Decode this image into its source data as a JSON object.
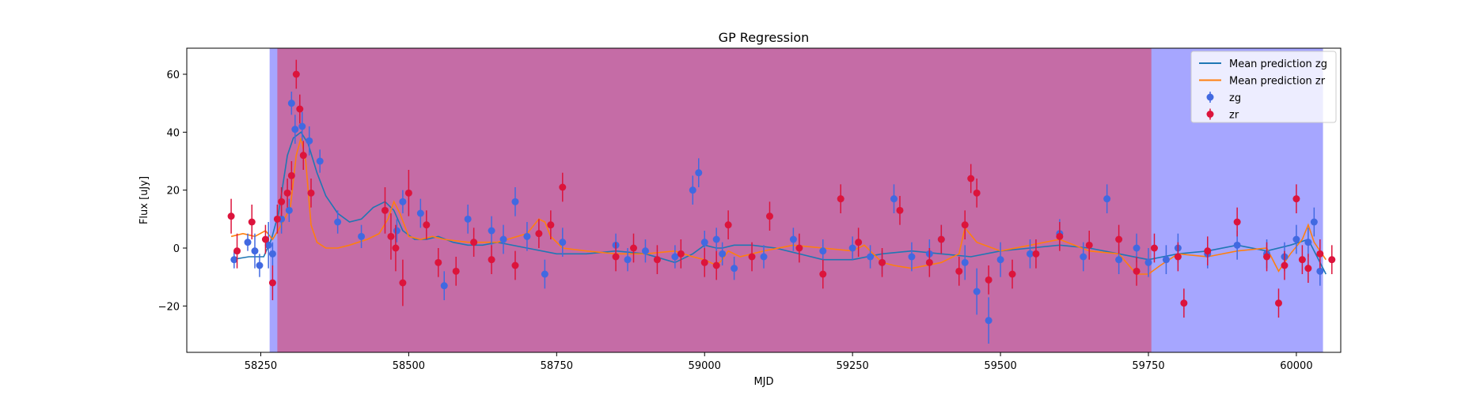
{
  "chart_data": {
    "type": "scatter",
    "title": "GP Regression",
    "xlabel": "MJD",
    "ylabel": "Flux [uJy]",
    "xlim": [
      58125,
      60075
    ],
    "ylim": [
      -36,
      69
    ],
    "x_ticks": [
      58250,
      58500,
      58750,
      59000,
      59250,
      59500,
      59750,
      60000
    ],
    "y_ticks": [
      -20,
      0,
      20,
      40,
      60
    ],
    "legend_position": "upper right",
    "colors": {
      "zg_points": "#4169e1",
      "zr_points": "#dc143c",
      "zg_mean": "#1f77b4",
      "zr_mean": "#ff7f0e"
    },
    "spans": [
      {
        "x0": 58265,
        "x1": 60045,
        "color": "#0000ff",
        "alpha": 0.35
      },
      {
        "x0": 58278,
        "x1": 59755,
        "color": "#ff0000",
        "alpha": 0.35
      }
    ],
    "legend": [
      {
        "label": "Mean prediction zg",
        "kind": "line",
        "color": "#1f77b4"
      },
      {
        "label": "Mean prediction zr",
        "kind": "line",
        "color": "#ff7f0e"
      },
      {
        "label": "zg",
        "kind": "errorbar",
        "color": "#4169e1"
      },
      {
        "label": "zr",
        "kind": "errorbar",
        "color": "#dc143c"
      }
    ],
    "series": [
      {
        "name": "Mean prediction zg",
        "kind": "line",
        "color": "#1f77b4",
        "x": [
          58200,
          58230,
          58255,
          58268,
          58280,
          58295,
          58305,
          58318,
          58330,
          58345,
          58360,
          58380,
          58400,
          58420,
          58440,
          58460,
          58475,
          58490,
          58510,
          58530,
          58550,
          58575,
          58600,
          58625,
          58650,
          58700,
          58750,
          58800,
          58850,
          58900,
          58950,
          58980,
          59000,
          59020,
          59030,
          59050,
          59080,
          59120,
          59160,
          59200,
          59250,
          59300,
          59350,
          59400,
          59450,
          59500,
          59550,
          59600,
          59650,
          59700,
          59750,
          59800,
          59850,
          59900,
          59950,
          59990,
          60020,
          60040,
          60050
        ],
        "y": [
          -4,
          -3,
          -3,
          3,
          12,
          32,
          38,
          40,
          36,
          26,
          18,
          12,
          9,
          10,
          14,
          16,
          13,
          6,
          3,
          3,
          4,
          2,
          1,
          1,
          2,
          0,
          -2,
          -2,
          -1,
          -2,
          -5,
          -2,
          1,
          0,
          0,
          1,
          1,
          0,
          -2,
          -4,
          -4,
          -2,
          -1,
          -2,
          -3,
          -1,
          0,
          1,
          0,
          -2,
          -4,
          -2,
          -1,
          1,
          -1,
          1,
          3,
          -5,
          -9
        ]
      },
      {
        "name": "Mean prediction zr",
        "kind": "line",
        "color": "#ff7f0e",
        "x": [
          58200,
          58220,
          58240,
          58258,
          58270,
          58285,
          58300,
          58310,
          58318,
          58326,
          58335,
          58345,
          58360,
          58380,
          58400,
          58430,
          58450,
          58465,
          58475,
          58485,
          58500,
          58520,
          58540,
          58560,
          58600,
          58650,
          58700,
          58720,
          58730,
          58740,
          58760,
          58800,
          58850,
          58900,
          58950,
          58980,
          59000,
          59020,
          59030,
          59040,
          59060,
          59100,
          59150,
          59200,
          59250,
          59270,
          59290,
          59300,
          59320,
          59350,
          59400,
          59430,
          59440,
          59460,
          59500,
          59600,
          59650,
          59700,
          59730,
          59750,
          59770,
          59800,
          59850,
          59900,
          59950,
          59970,
          59990,
          60010,
          60020,
          60030,
          60050
        ],
        "y": [
          4,
          5,
          4,
          6,
          3,
          8,
          14,
          32,
          38,
          30,
          8,
          2,
          0,
          0,
          1,
          3,
          5,
          10,
          16,
          12,
          4,
          3,
          4,
          3,
          2,
          2,
          5,
          10,
          9,
          4,
          0,
          -1,
          -2,
          -2,
          -1,
          -3,
          -4,
          -6,
          -4,
          -1,
          -3,
          -1,
          1,
          0,
          -1,
          1,
          -3,
          -5,
          -6,
          -7,
          -5,
          -2,
          7,
          2,
          -1,
          3,
          -1,
          -2,
          -9,
          -9,
          -6,
          -2,
          -3,
          -1,
          0,
          -8,
          -2,
          3,
          8,
          2,
          -4
        ]
      },
      {
        "name": "zg",
        "kind": "errorbar",
        "color": "#4169e1",
        "x": [
          58205,
          58228,
          58240,
          58248,
          58263,
          58270,
          58285,
          58298,
          58302,
          58308,
          58320,
          58332,
          58350,
          58380,
          58420,
          58480,
          58490,
          58520,
          58560,
          58600,
          58640,
          58660,
          58680,
          58700,
          58730,
          58760,
          58850,
          58870,
          58900,
          58950,
          58980,
          58990,
          59000,
          59020,
          59030,
          59050,
          59100,
          59150,
          59200,
          59250,
          59280,
          59300,
          59320,
          59350,
          59380,
          59400,
          59440,
          59460,
          59480,
          59500,
          59550,
          59600,
          59640,
          59680,
          59700,
          59730,
          59750,
          59780,
          59800,
          59850,
          59900,
          59950,
          59980,
          60000,
          60020,
          60030,
          60040
        ],
        "y": [
          -4,
          2,
          -1,
          -6,
          1,
          -2,
          10,
          13,
          50,
          41,
          42,
          37,
          30,
          9,
          4,
          6,
          16,
          12,
          -13,
          10,
          6,
          3,
          16,
          4,
          -9,
          2,
          1,
          -4,
          -1,
          -3,
          20,
          26,
          2,
          3,
          -2,
          -7,
          -3,
          3,
          -1,
          0,
          -3,
          -5,
          17,
          -3,
          -2,
          3,
          -5,
          -15,
          -25,
          -4,
          -2,
          5,
          -3,
          17,
          -4,
          0,
          -5,
          -4,
          0,
          -2,
          1,
          -2,
          -3,
          3,
          2,
          9,
          -8
        ],
        "err": [
          3,
          3,
          6,
          4,
          8,
          4,
          5,
          4,
          4,
          5,
          5,
          5,
          4,
          4,
          4,
          4,
          4,
          5,
          5,
          5,
          5,
          5,
          5,
          5,
          5,
          5,
          4,
          4,
          4,
          4,
          5,
          5,
          4,
          4,
          4,
          4,
          4,
          4,
          4,
          4,
          4,
          4,
          5,
          5,
          5,
          5,
          6,
          8,
          8,
          6,
          5,
          5,
          5,
          5,
          5,
          5,
          5,
          5,
          5,
          5,
          5,
          5,
          5,
          5,
          5,
          5,
          5
        ]
      },
      {
        "name": "zr",
        "kind": "errorbar",
        "color": "#dc143c",
        "x": [
          58200,
          58210,
          58235,
          58258,
          58270,
          58278,
          58285,
          58295,
          58302,
          58310,
          58316,
          58322,
          58335,
          58460,
          58470,
          58478,
          58490,
          58500,
          58530,
          58550,
          58580,
          58610,
          58640,
          58680,
          58720,
          58740,
          58760,
          58850,
          58880,
          58920,
          58960,
          59000,
          59020,
          59040,
          59080,
          59110,
          59160,
          59200,
          59230,
          59260,
          59300,
          59330,
          59380,
          59400,
          59430,
          59440,
          59450,
          59460,
          59480,
          59520,
          59560,
          59600,
          59650,
          59700,
          59730,
          59760,
          59800,
          59810,
          59850,
          59900,
          59950,
          59970,
          59980,
          60000,
          60010,
          60020,
          60040,
          60060
        ],
        "y": [
          11,
          -1,
          9,
          3,
          -12,
          10,
          16,
          19,
          25,
          60,
          48,
          32,
          19,
          13,
          4,
          0,
          -12,
          19,
          8,
          -5,
          -8,
          2,
          -4,
          -6,
          5,
          8,
          21,
          -3,
          0,
          -4,
          -2,
          -5,
          -6,
          8,
          -3,
          11,
          0,
          -9,
          17,
          2,
          -5,
          13,
          -5,
          3,
          -8,
          8,
          24,
          19,
          -11,
          -9,
          -2,
          4,
          1,
          3,
          -8,
          0,
          -3,
          -19,
          -1,
          9,
          -3,
          -19,
          -6,
          17,
          -4,
          -7,
          -2,
          -4
        ],
        "err": [
          6,
          6,
          6,
          5,
          6,
          5,
          5,
          5,
          5,
          5,
          5,
          5,
          5,
          8,
          8,
          8,
          8,
          8,
          5,
          5,
          5,
          5,
          5,
          5,
          5,
          5,
          5,
          5,
          5,
          5,
          5,
          5,
          5,
          5,
          5,
          5,
          5,
          5,
          5,
          5,
          5,
          5,
          5,
          5,
          5,
          5,
          5,
          5,
          5,
          5,
          5,
          5,
          5,
          5,
          5,
          5,
          5,
          5,
          5,
          5,
          5,
          5,
          5,
          5,
          5,
          5,
          5,
          5
        ]
      }
    ]
  }
}
